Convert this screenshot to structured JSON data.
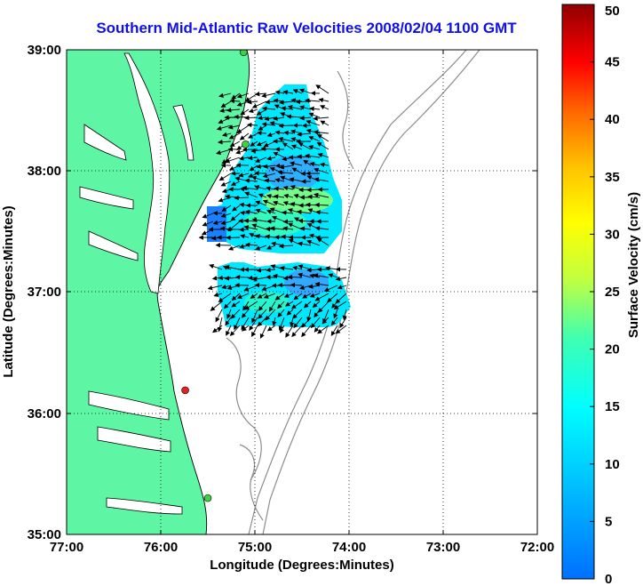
{
  "title": "Southern Mid-Atlantic Raw Velocities 2008/02/04 1100 GMT",
  "map": {
    "xlabel": "Longitude (Degrees:Minutes)",
    "ylabel": "Latitude (Degrees:Minutes)",
    "xlim": [
      -77,
      -72
    ],
    "ylim": [
      35,
      39
    ],
    "x_ticks": [
      "77:00",
      "76:00",
      "75:00",
      "74:00",
      "73:00",
      "72:00"
    ],
    "y_ticks": [
      "39:00",
      "38:00",
      "37:00",
      "36:00",
      "35:00"
    ],
    "grid": "dotted",
    "colors": {
      "land": "#5ef5a4",
      "contour": "#8c8c8c",
      "title": "#1010e8"
    },
    "stations": [
      {
        "lon": -75.12,
        "lat": 38.98,
        "color": "#3fd13f"
      },
      {
        "lon": -75.1,
        "lat": 38.22,
        "color": "#3fd13f"
      },
      {
        "lon": -75.74,
        "lat": 36.19,
        "color": "#e62020"
      },
      {
        "lon": -75.5,
        "lat": 35.3,
        "color": "#3fd13f"
      }
    ]
  },
  "colorbar": {
    "label": "Surface Velocity (cm/s)",
    "min": 0,
    "max": 50,
    "ticks": [
      "0",
      "5",
      "10",
      "15",
      "20",
      "25",
      "30",
      "35",
      "40",
      "45",
      "50"
    ],
    "colormap": "jet"
  }
}
